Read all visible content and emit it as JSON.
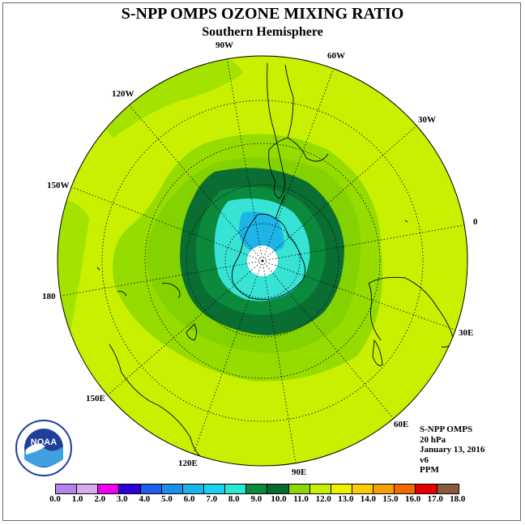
{
  "header": {
    "title": "S-NPP OMPS OZONE MIXING RATIO",
    "subtitle": "Southern Hemisphere"
  },
  "map": {
    "projection": "south-polar-stereographic",
    "hemisphere": "south",
    "longitude_labels": [
      "90W",
      "60W",
      "30W",
      "0",
      "30E",
      "60E",
      "90E",
      "120E",
      "150E",
      "180",
      "150W",
      "120W"
    ],
    "colors": {
      "background_field": "#c8f000",
      "outer_ring": "#a4e200",
      "band_mid": "#84d200",
      "band_dark": "#0a6e32",
      "band_green": "#0b8a3e",
      "band_cyan": "#37e3d5",
      "band_blue": "#1fb4e6",
      "pole_white": "#ffffff",
      "coast": "#000000",
      "grid": "#000000"
    }
  },
  "info": {
    "instrument": "S-NPP OMPS",
    "level": "20 hPa",
    "date": "January 13, 2016",
    "version": "v6",
    "units": "PPM"
  },
  "logo": {
    "text": "NOAA",
    "ring_text": "NATIONAL OCEANIC AND ATMOSPHERIC ADMINISTRATION · U.S. DEPARTMENT OF COMMERCE",
    "icon": "noaa-logo"
  },
  "colorbar": {
    "colors": [
      "#b083ee",
      "#d7acef",
      "#ee00ee",
      "#2a00d6",
      "#1e5ee8",
      "#1a8ee8",
      "#1ab4ea",
      "#1ad2f0",
      "#2ae8d2",
      "#0b8a3e",
      "#076a2e",
      "#8ad800",
      "#c8f000",
      "#eef000",
      "#ffcc00",
      "#f5a000",
      "#f26a00",
      "#e60000",
      "#8a5a3c"
    ],
    "tick_labels": [
      "0.0",
      "1.0",
      "2.0",
      "3.0",
      "4.0",
      "5.0",
      "6.0",
      "7.0",
      "8.0",
      "9.0",
      "10.0",
      "11.0",
      "12.0",
      "13.0",
      "14.0",
      "15.0",
      "16.0",
      "17.0",
      "18.0"
    ]
  }
}
